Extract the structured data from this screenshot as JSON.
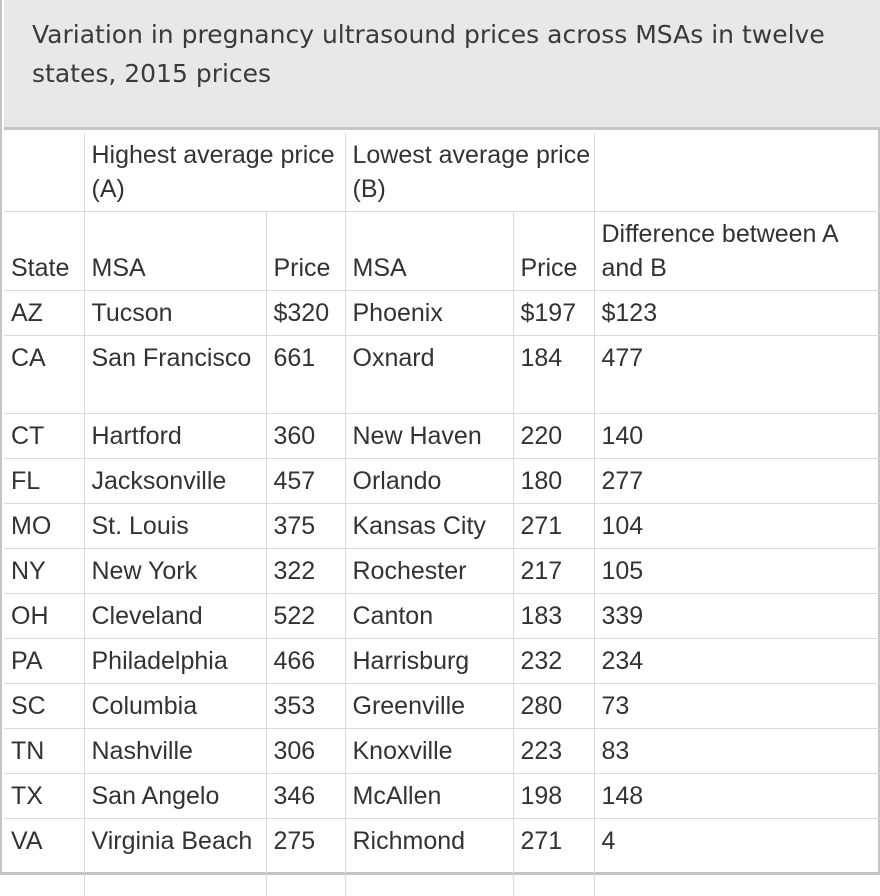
{
  "caption": "Variation in pregnancy ultrasound prices across MSAs in twelve states, 2015 prices",
  "group_headers": {
    "highest": "Highest average price (A)",
    "lowest": "Lowest average price (B)"
  },
  "columns": {
    "state": "State",
    "msa_a": "MSA",
    "price_a": "Price",
    "msa_b": "MSA",
    "price_b": "Price",
    "difference": "Difference between A and B"
  },
  "rows": [
    {
      "state": "AZ",
      "msa_a": "Tucson",
      "price_a": "$320",
      "msa_b": "Phoenix",
      "price_b": "$197",
      "diff": "$123"
    },
    {
      "state": "CA",
      "msa_a": "San Francisco",
      "price_a": "661",
      "msa_b": "Oxnard",
      "price_b": "184",
      "diff": "477"
    },
    {
      "state": "CT",
      "msa_a": "Hartford",
      "price_a": "360",
      "msa_b": "New Haven",
      "price_b": "220",
      "diff": "140"
    },
    {
      "state": "FL",
      "msa_a": "Jacksonville",
      "price_a": "457",
      "msa_b": "Orlando",
      "price_b": "180",
      "diff": "277"
    },
    {
      "state": "MO",
      "msa_a": "St. Louis",
      "price_a": "375",
      "msa_b": "Kansas City",
      "price_b": "271",
      "diff": "104"
    },
    {
      "state": "NY",
      "msa_a": "New York",
      "price_a": "322",
      "msa_b": "Rochester",
      "price_b": "217",
      "diff": "105"
    },
    {
      "state": "OH",
      "msa_a": "Cleveland",
      "price_a": "522",
      "msa_b": "Canton",
      "price_b": "183",
      "diff": "339"
    },
    {
      "state": "PA",
      "msa_a": "Philadelphia",
      "price_a": "466",
      "msa_b": "Harrisburg",
      "price_b": "232",
      "diff": "234"
    },
    {
      "state": "SC",
      "msa_a": "Columbia",
      "price_a": "353",
      "msa_b": "Greenville",
      "price_b": "280",
      "diff": "73"
    },
    {
      "state": "TN",
      "msa_a": "Nashville",
      "price_a": "306",
      "msa_b": "Knoxville",
      "price_b": "223",
      "diff": "83"
    },
    {
      "state": "TX",
      "msa_a": "San Angelo",
      "price_a": "346",
      "msa_b": "McAllen",
      "price_b": "198",
      "diff": "148"
    },
    {
      "state": "VA",
      "msa_a": "Virginia Beach",
      "price_a": "275",
      "msa_b": "Richmond",
      "price_b": "271",
      "diff": "4"
    }
  ]
}
